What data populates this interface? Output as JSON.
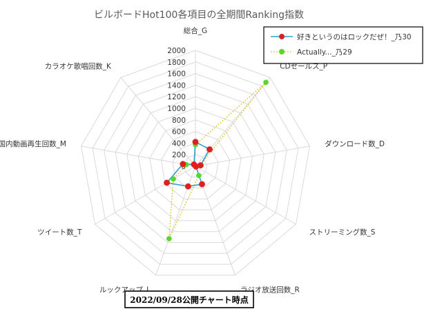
{
  "chart_data": {
    "type": "radar",
    "title": "ビルボードHot100各項目の全期間Ranking指数",
    "axes": [
      "総合_G",
      "CDセールス_P",
      "ダウンロード数_D",
      "ストリーミング数_S",
      "ラジオ放送回数_R",
      "ルックアップ_L",
      "ツイート数_T",
      "国内動画再生回数_M",
      "カラオケ歌唱回数_K"
    ],
    "r_ticks": [
      "0",
      "200",
      "400",
      "600",
      "800",
      "1000",
      "1200",
      "1400",
      "1600",
      "1800",
      "2000"
    ],
    "rlim": [
      0,
      2000
    ],
    "legend_position": "top-right",
    "series": [
      {
        "name": "好きというのはロックだぜ！_乃30",
        "color": "#2e9fd0",
        "marker_color": "#e02020",
        "line_style": "solid",
        "values": [
          420,
          380,
          90,
          10,
          330,
          370,
          570,
          220,
          40
        ]
      },
      {
        "name": "Actually..._乃29",
        "color": "#d4b800",
        "marker_color": "#5cd62e",
        "line_style": "dotted",
        "values": [
          370,
          1890,
          80,
          10,
          170,
          1330,
          440,
          160,
          40
        ]
      }
    ]
  },
  "caption": "2022/09/28公開チャート時点"
}
